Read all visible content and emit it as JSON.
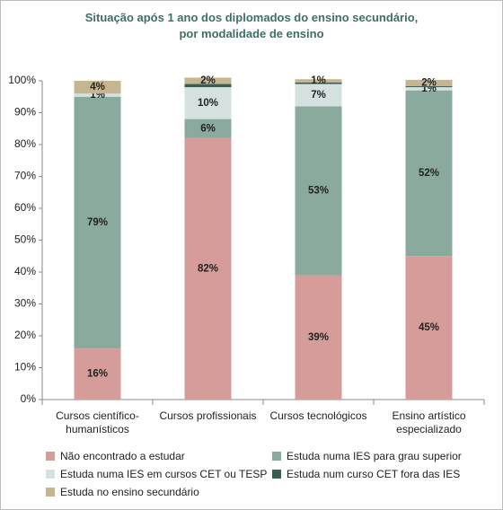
{
  "chart_data": {
    "type": "stacked-bar",
    "title": [
      "Situação após 1 ano dos diplomados do ensino secundário,",
      "por modalidade de ensino"
    ],
    "categories": [
      "Cursos científico-humanísticos",
      "Cursos profissionais",
      "Cursos tecnológicos",
      "Ensino artístico especializado"
    ],
    "series": [
      {
        "name": "Não encontrado a estudar",
        "color": "#d59c9a",
        "values": [
          16,
          82,
          39,
          45
        ],
        "value_labels": [
          "16%",
          "82%",
          "39%",
          "45%"
        ]
      },
      {
        "name": "Estuda numa IES para grau superior",
        "color": "#89aa9c",
        "values": [
          79,
          6,
          53,
          52
        ],
        "value_labels": [
          "79%",
          "6%",
          "53%",
          "52%"
        ]
      },
      {
        "name": "Estuda numa IES em cursos CET ou TESP",
        "color": "#d4e1df",
        "values": [
          1,
          10,
          7,
          1
        ],
        "value_labels": [
          "1%",
          "10%",
          "7%",
          "1%"
        ]
      },
      {
        "name": "Estuda num curso CET fora das IES",
        "color": "#3d5c51",
        "values": [
          0,
          1,
          0.5,
          0.3
        ],
        "value_labels": [
          null,
          null,
          null,
          null
        ]
      },
      {
        "name": "Estuda no ensino secundário",
        "color": "#c6b68f",
        "values": [
          4,
          2,
          1,
          2
        ],
        "value_labels": [
          "4%",
          "2%",
          "1%",
          "2%"
        ]
      }
    ],
    "ylim": [
      0,
      100
    ],
    "yticks": [
      {
        "value": 0,
        "label": "0%"
      },
      {
        "value": 10,
        "label": "10%"
      },
      {
        "value": 20,
        "label": "20%"
      },
      {
        "value": 30,
        "label": "30%"
      },
      {
        "value": 40,
        "label": "40%"
      },
      {
        "value": 50,
        "label": "50%"
      },
      {
        "value": 60,
        "label": "60%"
      },
      {
        "value": 70,
        "label": "70%"
      },
      {
        "value": 80,
        "label": "80%"
      },
      {
        "value": 90,
        "label": "90%"
      },
      {
        "value": 100,
        "label": "100%"
      }
    ],
    "legend": "bottom"
  }
}
